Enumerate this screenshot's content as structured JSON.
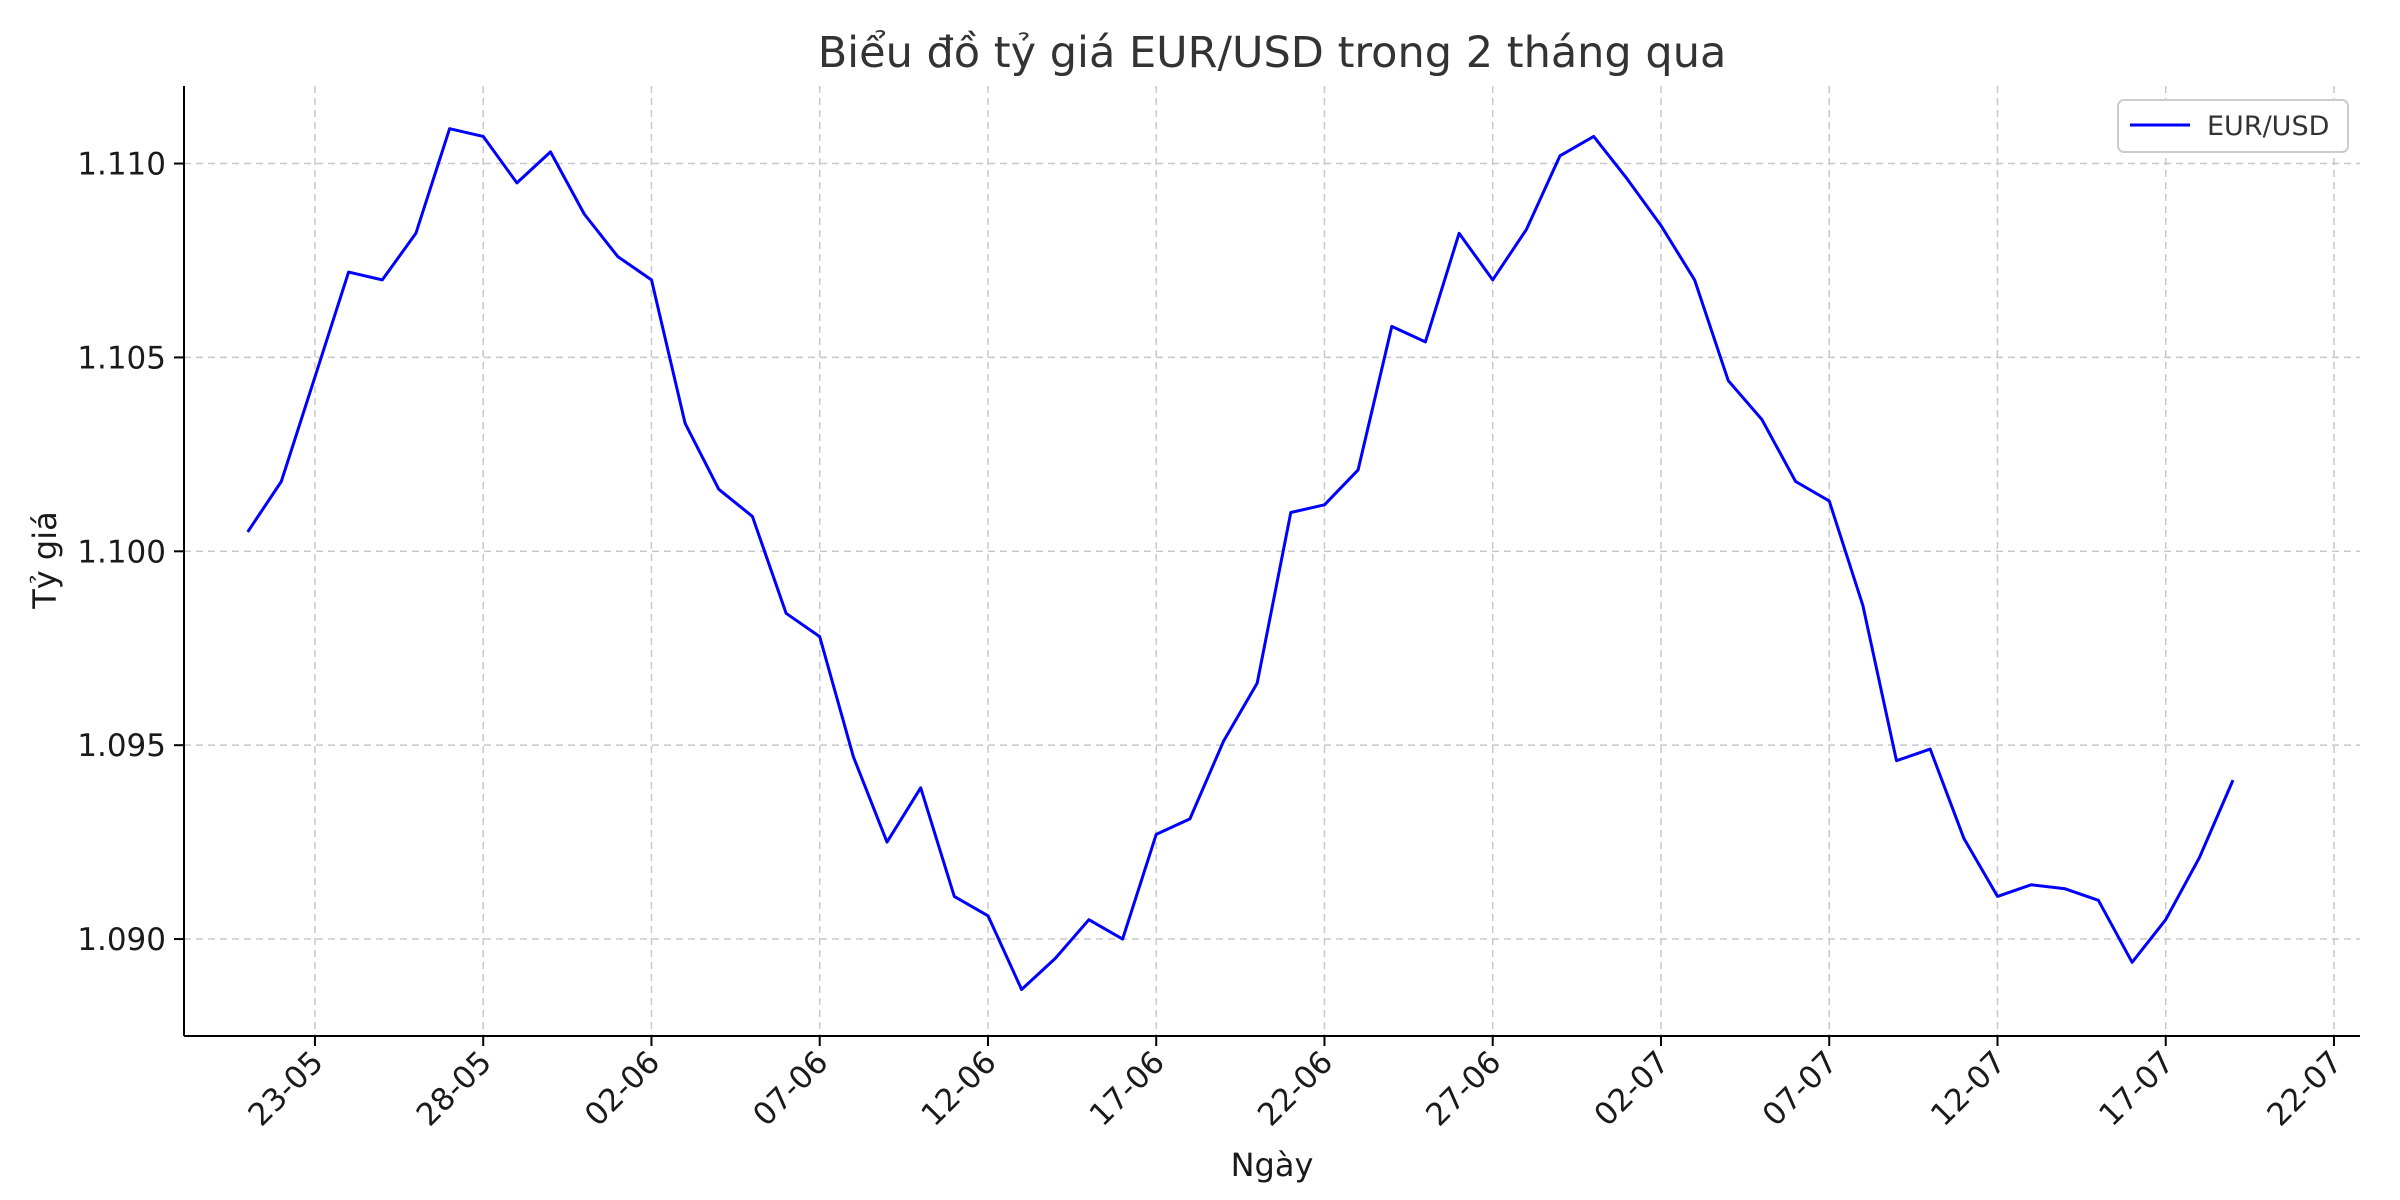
{
  "chart_data": {
    "type": "line",
    "title": "Biểu đồ tỷ giá EUR/USD trong 2 tháng qua",
    "xlabel": "Ngày",
    "ylabel": "Tỷ giá",
    "ylim": [
      1.0875,
      1.112
    ],
    "xlim": [
      "2024-05-20",
      "2024-07-22"
    ],
    "grid": true,
    "legend_position": "top-right",
    "x_ticks": [
      {
        "date": "2024-05-23",
        "label": "23-05"
      },
      {
        "date": "2024-05-28",
        "label": "28-05"
      },
      {
        "date": "2024-06-02",
        "label": "02-06"
      },
      {
        "date": "2024-06-07",
        "label": "07-06"
      },
      {
        "date": "2024-06-12",
        "label": "12-06"
      },
      {
        "date": "2024-06-17",
        "label": "17-06"
      },
      {
        "date": "2024-06-22",
        "label": "22-06"
      },
      {
        "date": "2024-06-27",
        "label": "27-06"
      },
      {
        "date": "2024-07-02",
        "label": "02-07"
      },
      {
        "date": "2024-07-07",
        "label": "07-07"
      },
      {
        "date": "2024-07-12",
        "label": "12-07"
      },
      {
        "date": "2024-07-17",
        "label": "17-07"
      },
      {
        "date": "2024-07-22",
        "label": "22-07"
      }
    ],
    "y_ticks": [
      {
        "value": 1.09,
        "label": "1.090"
      },
      {
        "value": 1.095,
        "label": "1.095"
      },
      {
        "value": 1.1,
        "label": "1.100"
      },
      {
        "value": 1.105,
        "label": "1.105"
      },
      {
        "value": 1.11,
        "label": "1.110"
      }
    ],
    "series": [
      {
        "name": "EUR/USD",
        "color": "#0000ff",
        "x": [
          "2024-05-21",
          "2024-05-22",
          "2024-05-23",
          "2024-05-24",
          "2024-05-25",
          "2024-05-26",
          "2024-05-27",
          "2024-05-28",
          "2024-05-29",
          "2024-05-30",
          "2024-05-31",
          "2024-06-01",
          "2024-06-02",
          "2024-06-03",
          "2024-06-04",
          "2024-06-05",
          "2024-06-06",
          "2024-06-07",
          "2024-06-08",
          "2024-06-09",
          "2024-06-10",
          "2024-06-11",
          "2024-06-12",
          "2024-06-13",
          "2024-06-14",
          "2024-06-15",
          "2024-06-16",
          "2024-06-17",
          "2024-06-18",
          "2024-06-19",
          "2024-06-20",
          "2024-06-21",
          "2024-06-22",
          "2024-06-23",
          "2024-06-24",
          "2024-06-25",
          "2024-06-26",
          "2024-06-27",
          "2024-06-28",
          "2024-06-29",
          "2024-06-30",
          "2024-07-01",
          "2024-07-02",
          "2024-07-03",
          "2024-07-04",
          "2024-07-05",
          "2024-07-06",
          "2024-07-07",
          "2024-07-08",
          "2024-07-09",
          "2024-07-10",
          "2024-07-11",
          "2024-07-12",
          "2024-07-13",
          "2024-07-14",
          "2024-07-15",
          "2024-07-16",
          "2024-07-17",
          "2024-07-18",
          "2024-07-19"
        ],
        "values": [
          1.1005,
          1.1018,
          1.1045,
          1.1072,
          1.107,
          1.1082,
          1.1109,
          1.1107,
          1.1095,
          1.1103,
          1.1087,
          1.1076,
          1.107,
          1.1033,
          1.1016,
          1.1009,
          1.0984,
          1.0978,
          1.0947,
          1.0925,
          1.0939,
          1.0911,
          1.0906,
          1.0887,
          1.0895,
          1.0905,
          1.09,
          1.0927,
          1.0931,
          1.0951,
          1.0966,
          1.101,
          1.1012,
          1.1021,
          1.1058,
          1.1054,
          1.1082,
          1.107,
          1.1083,
          1.1102,
          1.1107,
          1.1096,
          1.1084,
          1.107,
          1.1044,
          1.1034,
          1.1018,
          1.1013,
          1.0986,
          1.0946,
          1.0949,
          1.0926,
          1.0911,
          1.0914,
          1.0913,
          1.091,
          1.0894,
          1.0905,
          1.0921,
          1.0941
        ]
      }
    ]
  }
}
